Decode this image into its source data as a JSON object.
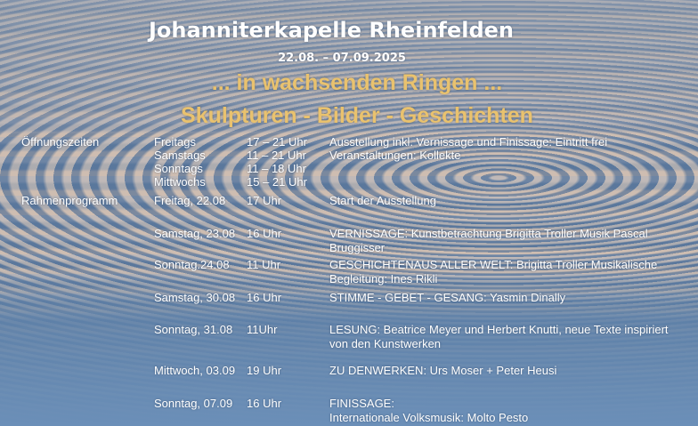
{
  "header": {
    "title": "Johanniterkapelle  Rheinfelden",
    "dates": "22.08. – 07.09.2025",
    "subtitle": "...  in  wachsenden Ringen ...",
    "tagline": "Skulpturen - Bilder - Geschichten"
  },
  "colors": {
    "gold": "#e9c26e",
    "text": "#ffffff"
  },
  "opening": {
    "label": "Öffnungszeiten",
    "rows": [
      {
        "day": "Freitags",
        "time": "17 – 21 Uhr",
        "note": "Ausstellung inkl. Vernissage und Finissage: Eintritt frei"
      },
      {
        "day": "Samstags",
        "time": "11 – 21 Uhr",
        "note": "Veranstaltungen: Kollekte"
      },
      {
        "day": "Sonntags",
        "time": "11 – 18 Uhr",
        "note": ""
      },
      {
        "day": "Mittwochs",
        "time": "15 – 21 Uhr",
        "note": ""
      }
    ]
  },
  "program": {
    "label": "Rahmenprogramm",
    "events": [
      {
        "date": "Freitag, 22.08",
        "time": "17 Uhr",
        "lines": [
          "Start der Ausstellung"
        ]
      },
      {
        "date": "Samstag, 23.08",
        "time": "16 Uhr",
        "lines": [
          "VERNISSAGE: Kunstbetrachtung  Brigitta Troller Musik Pascal",
          "Bruggisser"
        ]
      },
      {
        "date": "Sonntag.24.08",
        "time": "11 Uhr",
        "lines": [
          "GESCHICHTENAUS ALLER WELT:  Brigitta Troller Musikalische",
          "Begleitung: Ines Rikli"
        ]
      },
      {
        "date": "Samstag, 30.08",
        "time": "16 Uhr",
        "lines": [
          "STIMME - GEBET - GESANG: Yasmin Dinally"
        ]
      },
      {
        "date": "Sonntag, 31.08",
        "time": "11Uhr",
        "lines": [
          "LESUNG: Beatrice Meyer und Herbert  Knutti, neue Texte inspiriert",
          "von den Kunstwerken"
        ]
      },
      {
        "date": "Mittwoch, 03.09",
        "time": "19 Uhr",
        "lines": [
          "ZU DENWERKEN: Urs Moser  + Peter Heusi"
        ]
      },
      {
        "date": "Sonntag, 07.09",
        "time": "16 Uhr",
        "lines": [
          "FINISSAGE:",
          "Internationale Volksmusik: Molto Pesto"
        ]
      }
    ]
  }
}
